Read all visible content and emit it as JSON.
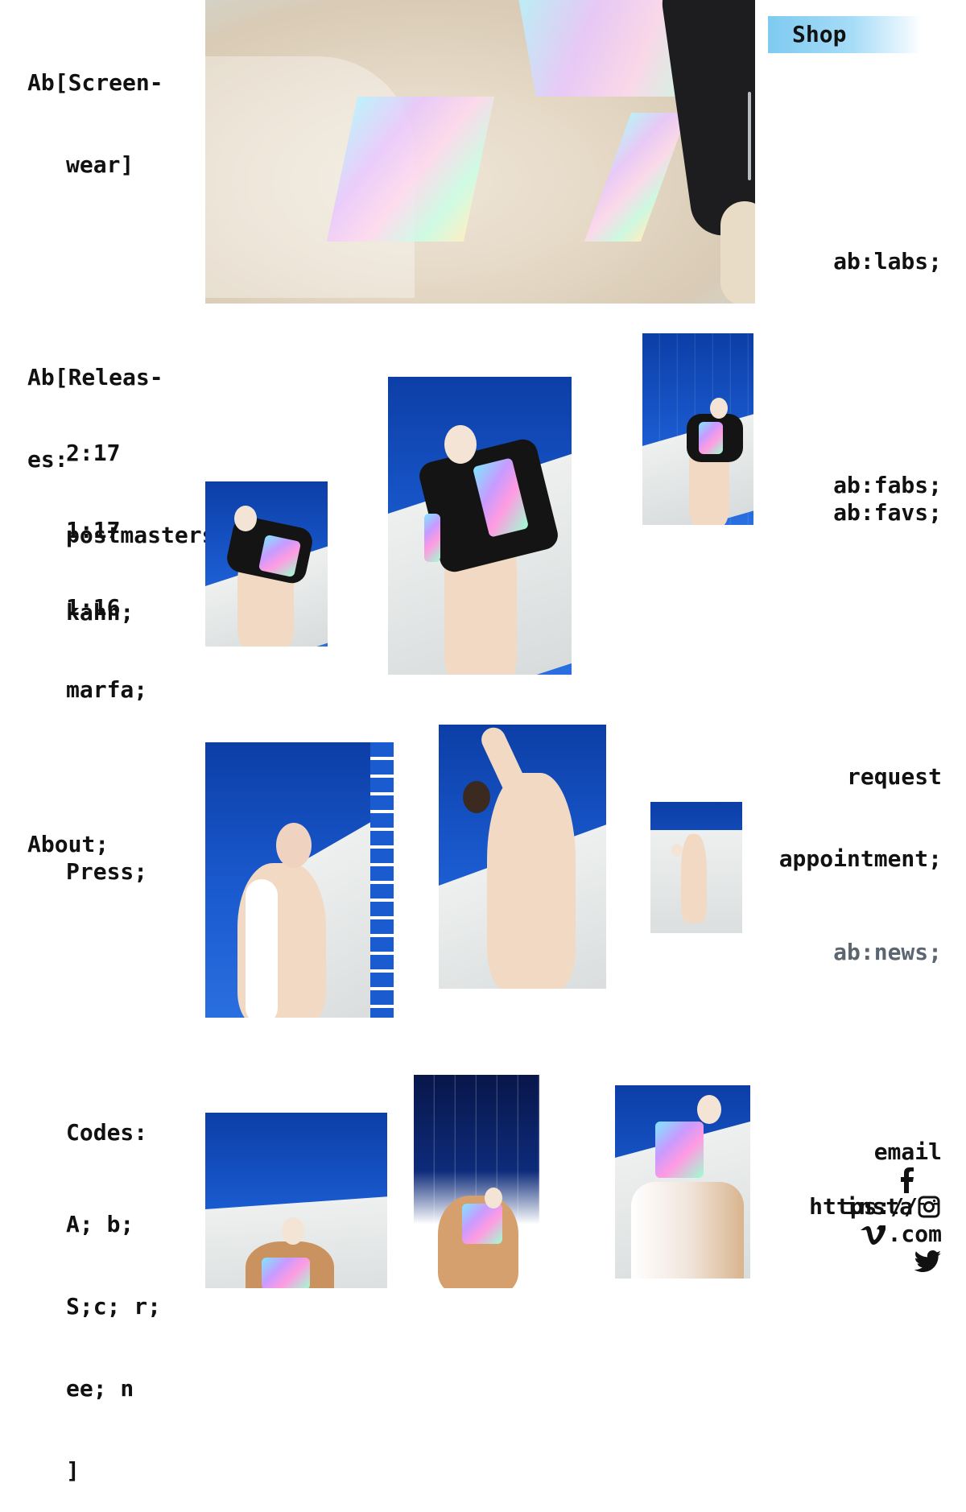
{
  "brand": {
    "line1": "Ab[Screen-",
    "line2": "wear]"
  },
  "shop_label": "Shop",
  "nav_right": {
    "labs": "ab:labs;",
    "fabs": "ab:fabs;",
    "favs": "ab:favs;",
    "request_line1": "request",
    "request_line2": "appointment;",
    "news": "ab:news;"
  },
  "releases": {
    "heading_line1": "Ab[Releas-",
    "heading_line2": "es:",
    "items": [
      {
        "number": "2:17",
        "name": "postmasters;"
      },
      {
        "number": "1:17",
        "name": "kahn;"
      },
      {
        "number": "1:16",
        "name": "marfa;"
      }
    ]
  },
  "about": {
    "about_label": "About;",
    "press_label": "Press;"
  },
  "codes": {
    "heading": "Codes:",
    "lines": [
      "A; b;",
      "S;c; r;",
      "ee; n",
      "]"
    ]
  },
  "contact": {
    "email": "email",
    "facebook_prefix": "https://",
    "insta": "insta",
    "vimeo_suffix": ".com"
  },
  "colors": {
    "sky_blue": "#1a5bd0",
    "shop_gradient_start": "#7fcaf0",
    "text": "#111111",
    "muted": "#5c6670"
  },
  "icons": {
    "facebook": "facebook-icon",
    "instagram": "instagram-icon",
    "vimeo": "vimeo-icon",
    "twitter": "twitter-icon"
  }
}
